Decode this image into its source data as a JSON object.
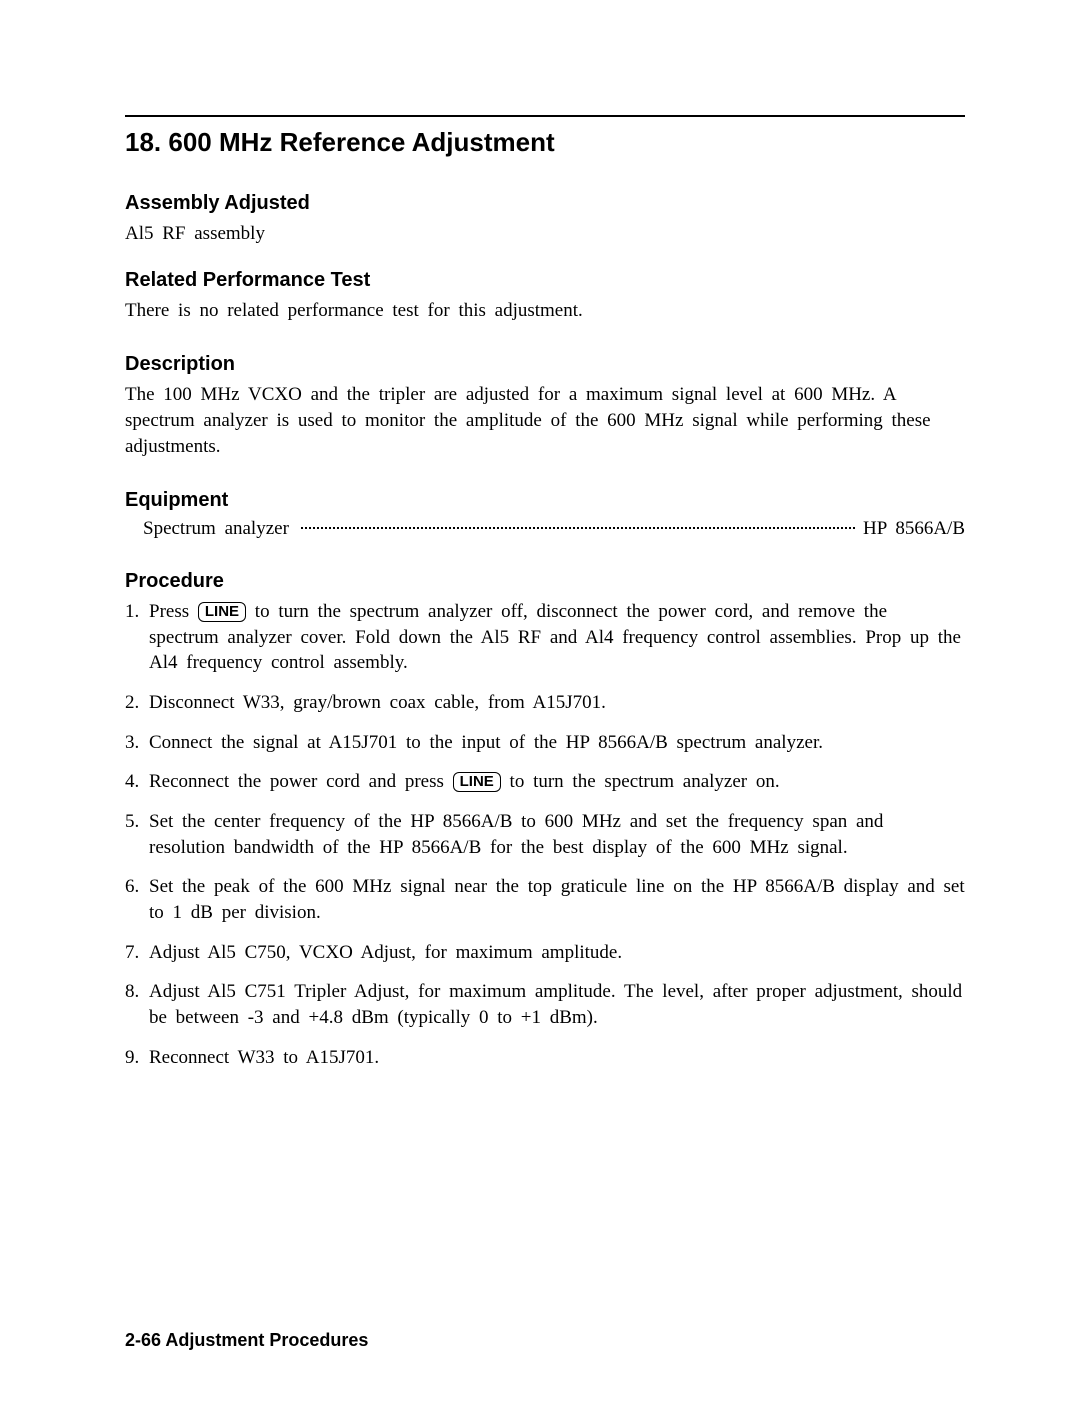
{
  "title": "18. 600 MHz Reference Adjustment",
  "sections": {
    "assembly": {
      "heading": "Assembly Adjusted",
      "text": "Al5 RF assembly"
    },
    "related": {
      "heading": "Related Performance Test",
      "text": "There is no related performance test for this adjustment."
    },
    "description": {
      "heading": "Description",
      "text": "The 100 MHz VCXO and the tripler are adjusted for a maximum signal level at 600 MHz. A spectrum analyzer is used to monitor the amplitude of the 600 MHz signal while performing these adjustments."
    },
    "equipment": {
      "heading": "Equipment",
      "item_label": "Spectrum analyzer",
      "item_value": "HP 8566A/B"
    },
    "procedure": {
      "heading": "Procedure",
      "line_key": "LINE",
      "steps": {
        "s1a": "Press ",
        "s1b": " to turn the spectrum analyzer off, disconnect the power cord, and remove the spectrum analyzer cover. Fold down the Al5 RF and Al4 frequency control assemblies. Prop up the Al4 frequency control assembly.",
        "s2": "Disconnect W33, gray/brown coax cable, from A15J701.",
        "s3": "Connect the signal at A15J701 to the input of the HP 8566A/B spectrum analyzer.",
        "s4a": "Reconnect the power cord and press ",
        "s4b": " to turn the spectrum analyzer on.",
        "s5": "Set the center frequency of the HP 8566A/B to 600 MHz and set the frequency span and resolution bandwidth of the HP 8566A/B for the best display of the 600 MHz signal.",
        "s6": "Set the peak of the 600 MHz signal near the top graticule line on the HP 8566A/B display and set to 1 dB per division.",
        "s7": "Adjust Al5 C750, VCXO Adjust, for maximum amplitude.",
        "s8": "Adjust Al5 C751 Tripler Adjust, for maximum amplitude. The level, after proper adjustment, should be between -3 and +4.8 dBm (typically 0 to +1 dBm).",
        "s9": "Reconnect W33 to A15J701."
      }
    }
  },
  "footer": "2-66 Adjustment Procedures"
}
